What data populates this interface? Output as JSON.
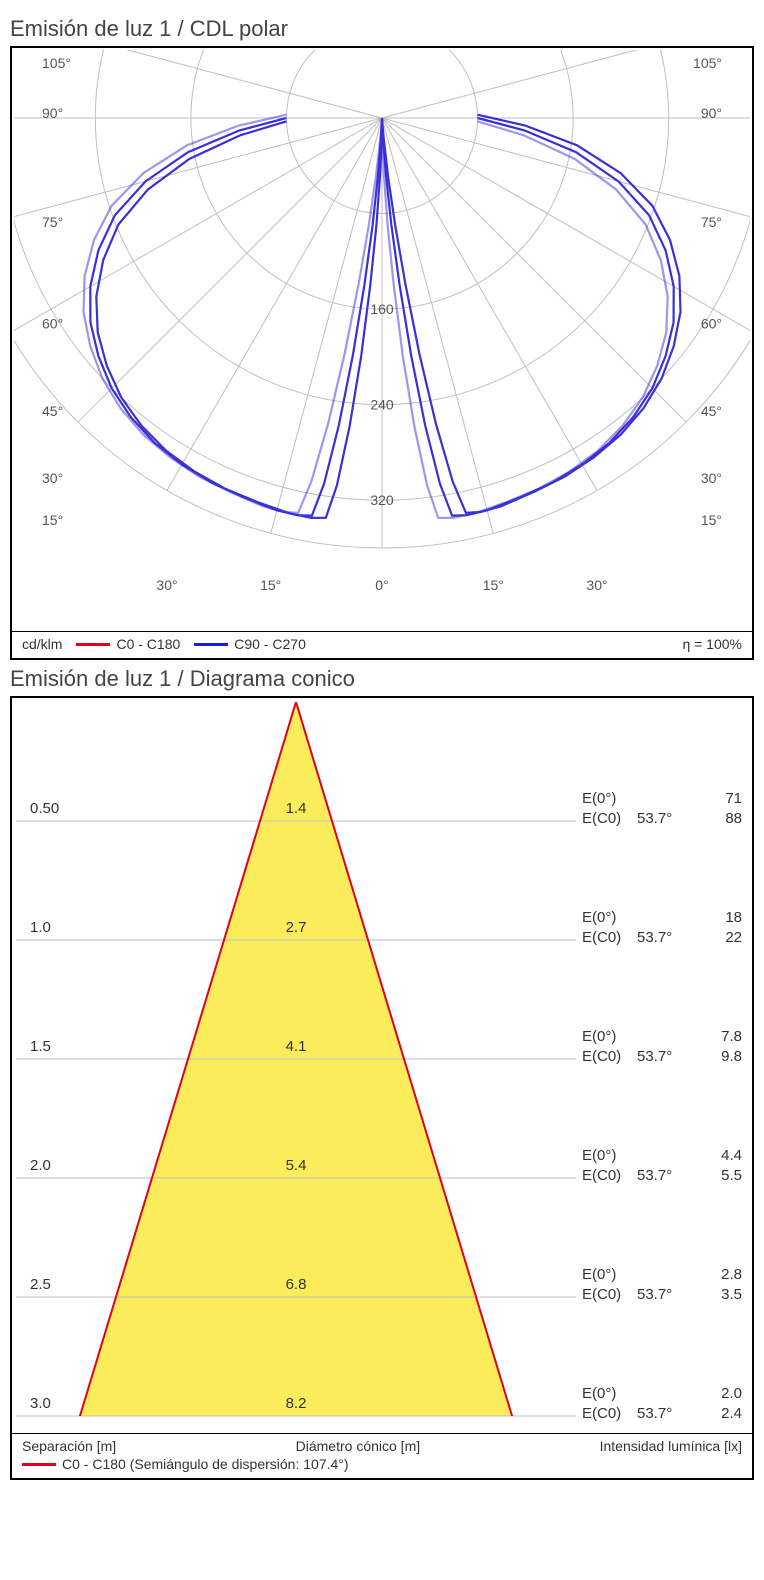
{
  "polar": {
    "title": "Emisión de luz 1 / CDL polar",
    "unit_label": "cd/klm",
    "efficiency_label": "η = 100%",
    "series": [
      {
        "name": "C0 - C180",
        "color": "#e2001a"
      },
      {
        "name": "C90 - C270",
        "color": "#1a1ae6"
      }
    ],
    "angle_ticks_deg": [
      105,
      90,
      75,
      60,
      45,
      30,
      15,
      0
    ],
    "angle_labels_left": [
      "105°",
      "90°",
      "75°",
      "60°",
      "45°",
      "30°",
      "15°"
    ],
    "angle_labels_right": [
      "105°",
      "90°",
      "75°",
      "60°",
      "45°",
      "30°",
      "15°"
    ],
    "bottom_center_label": "0°",
    "ring_values": [
      80,
      160,
      240,
      320
    ],
    "ring_labels_shown": [
      "160",
      "240",
      "320"
    ],
    "max_radius_value": 360,
    "grid_color": "#bfbfbf",
    "curve_color": "#3a2fd8",
    "curve_width": 2.2,
    "background_color": "#ffffff",
    "curve_points_deg_r": [
      [
        -90,
        80
      ],
      [
        -85,
        120
      ],
      [
        -80,
        165
      ],
      [
        -75,
        205
      ],
      [
        -70,
        238
      ],
      [
        -65,
        262
      ],
      [
        -60,
        282
      ],
      [
        -55,
        298
      ],
      [
        -50,
        310
      ],
      [
        -45,
        320
      ],
      [
        -40,
        327
      ],
      [
        -35,
        332
      ],
      [
        -30,
        335
      ],
      [
        -25,
        337
      ],
      [
        -20,
        338
      ],
      [
        -15,
        340
      ],
      [
        -12,
        340
      ],
      [
        -10,
        338
      ],
      [
        -9,
        310
      ],
      [
        -8,
        260
      ],
      [
        -7,
        200
      ],
      [
        -6,
        140
      ],
      [
        -5,
        90
      ],
      [
        -4,
        50
      ],
      [
        -3,
        20
      ],
      [
        -2,
        6
      ],
      [
        0,
        0
      ],
      [
        2,
        6
      ],
      [
        3,
        20
      ],
      [
        4,
        50
      ],
      [
        5,
        90
      ],
      [
        6,
        140
      ],
      [
        7,
        200
      ],
      [
        8,
        260
      ],
      [
        9,
        310
      ],
      [
        10,
        338
      ],
      [
        12,
        340
      ],
      [
        15,
        340
      ],
      [
        20,
        338
      ],
      [
        25,
        337
      ],
      [
        30,
        335
      ],
      [
        35,
        332
      ],
      [
        40,
        327
      ],
      [
        45,
        320
      ],
      [
        50,
        310
      ],
      [
        55,
        298
      ],
      [
        60,
        282
      ],
      [
        65,
        262
      ],
      [
        70,
        238
      ],
      [
        75,
        205
      ],
      [
        80,
        165
      ],
      [
        85,
        120
      ],
      [
        90,
        80
      ]
    ],
    "curve2_offset_deg": 2.0
  },
  "cone": {
    "title": "Emisión de luz 1 / Diagrama conico",
    "fill_color": "#faec5a",
    "line_color": "#e2001a",
    "grid_color": "#bfbfbf",
    "background_color": "#ffffff",
    "half_angle_deg": 53.7,
    "half_angle_label": "53.7°",
    "legend": {
      "sep_label": "Separación [m]",
      "dia_label": "Diámetro cónico [m]",
      "int_label": "Intensidad lumínica [lx]",
      "series_label": "C0 - C180 (Semiángulo de dispersión: 107.4°)",
      "series_color": "#e2001a"
    },
    "side_labels": {
      "e0": "E(0°)",
      "ec0": "E(C0)"
    },
    "rows": [
      {
        "sep": "0.50",
        "dia": "1.4",
        "e0": "71",
        "ec0": "88"
      },
      {
        "sep": "1.0",
        "dia": "2.7",
        "e0": "18",
        "ec0": "22"
      },
      {
        "sep": "1.5",
        "dia": "4.1",
        "e0": "7.8",
        "ec0": "9.8"
      },
      {
        "sep": "2.0",
        "dia": "5.4",
        "e0": "4.4",
        "ec0": "5.5"
      },
      {
        "sep": "2.5",
        "dia": "6.8",
        "e0": "2.8",
        "ec0": "3.5"
      },
      {
        "sep": "3.0",
        "dia": "8.2",
        "e0": "2.0",
        "ec0": "2.4"
      }
    ]
  }
}
